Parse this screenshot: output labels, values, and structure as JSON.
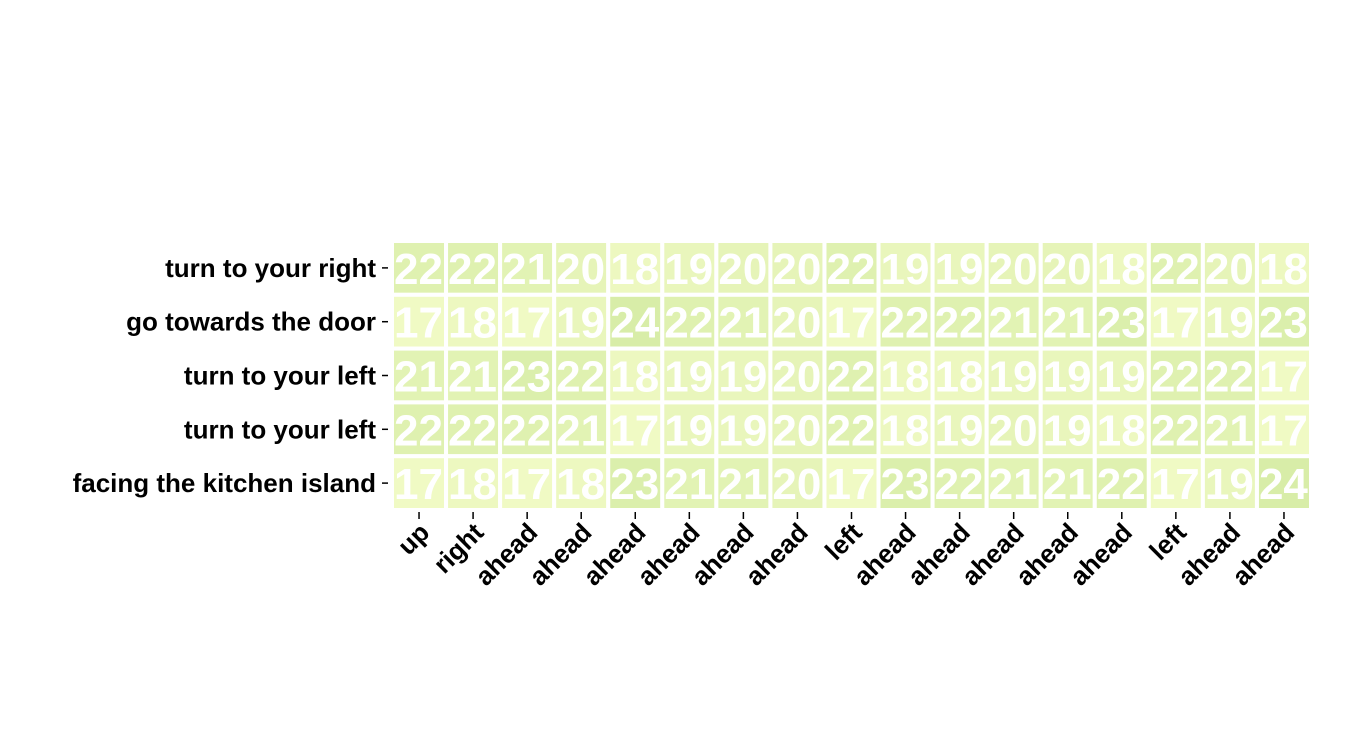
{
  "chart_data": {
    "type": "heatmap",
    "title": "",
    "xlabel": "",
    "ylabel": "",
    "rows": [
      "turn to your right",
      "go towards the door",
      "turn to your left",
      "turn to your left",
      "facing the kitchen island"
    ],
    "columns": [
      "up",
      "right",
      "ahead",
      "ahead",
      "ahead",
      "ahead",
      "ahead",
      "ahead",
      "left",
      "ahead",
      "ahead",
      "ahead",
      "ahead",
      "ahead",
      "left",
      "ahead",
      "ahead"
    ],
    "values": [
      [
        22,
        22,
        21,
        20,
        18,
        19,
        20,
        20,
        22,
        19,
        19,
        20,
        20,
        18,
        22,
        20,
        18
      ],
      [
        17,
        18,
        17,
        19,
        24,
        22,
        21,
        20,
        17,
        22,
        22,
        21,
        21,
        23,
        17,
        19,
        23
      ],
      [
        21,
        21,
        23,
        22,
        18,
        19,
        19,
        20,
        22,
        18,
        18,
        19,
        19,
        19,
        22,
        22,
        17
      ],
      [
        22,
        22,
        22,
        21,
        17,
        19,
        19,
        20,
        22,
        18,
        19,
        20,
        19,
        18,
        22,
        21,
        17
      ],
      [
        17,
        18,
        17,
        18,
        23,
        21,
        21,
        20,
        17,
        23,
        22,
        21,
        21,
        22,
        17,
        19,
        24
      ]
    ],
    "value_range": [
      17,
      24
    ],
    "colormap": {
      "low": "#f0fac4",
      "high": "#d8eda8"
    },
    "annotation_color": "#ffffff",
    "cell_separator_color": "#ffffff",
    "grid": false,
    "legend": "none"
  }
}
